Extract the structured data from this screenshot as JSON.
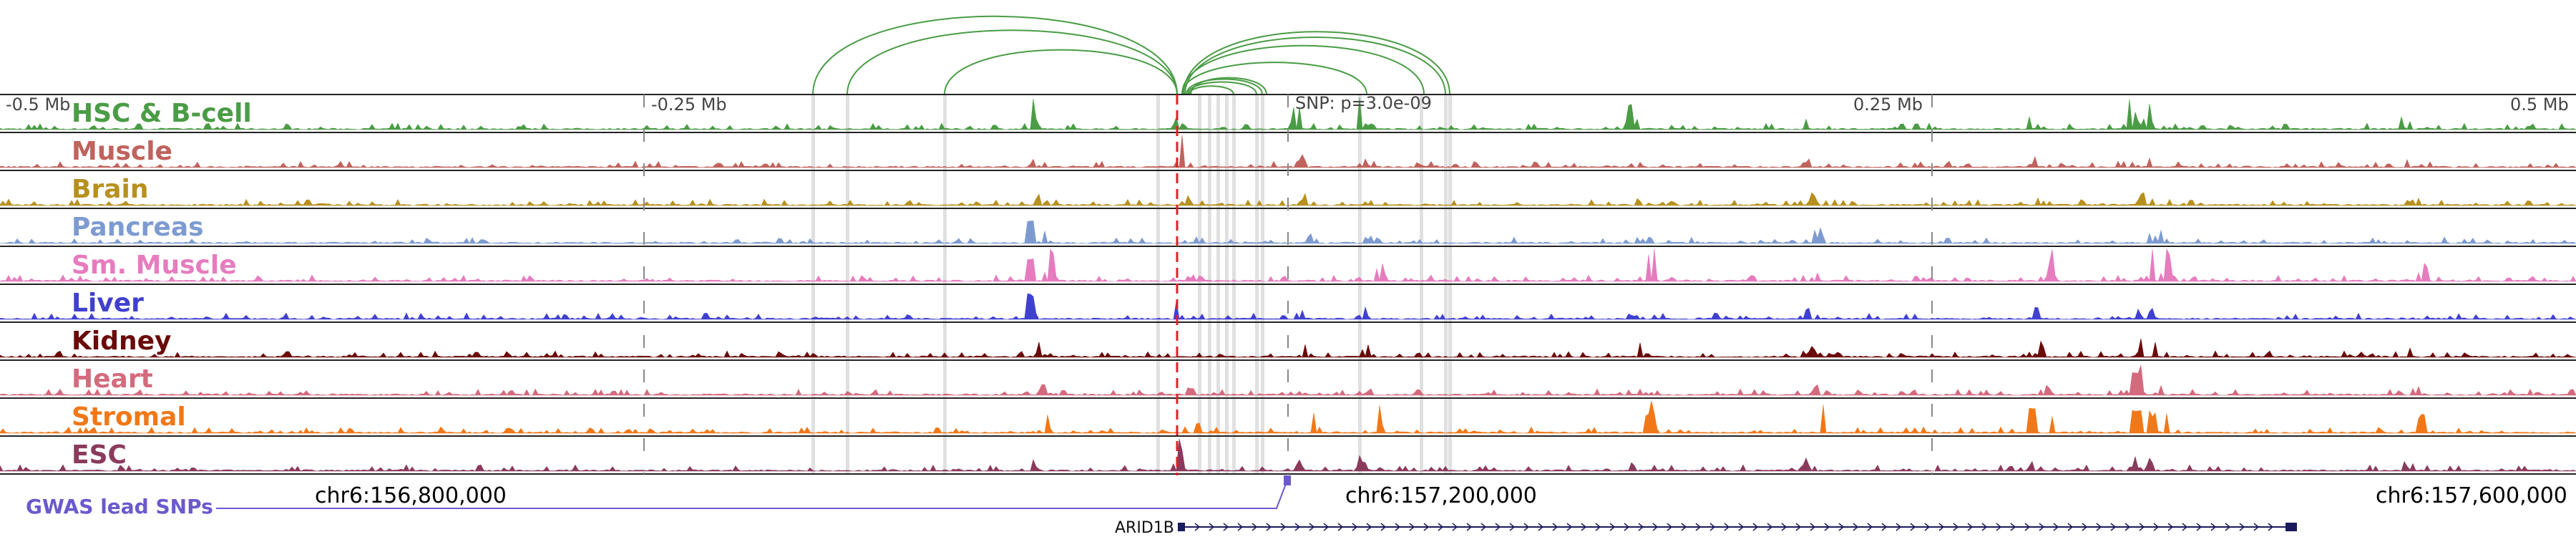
{
  "distance_labels": [
    "-0.5 Mb",
    "-0.25 Mb",
    "0.25 Mb",
    "0.5 Mb"
  ],
  "snp_label": "SNP: p=3.0e-09",
  "tracks": [
    {
      "label": "HSC & B-cell",
      "color": "#4a9c45"
    },
    {
      "label": "Muscle",
      "color": "#c0625d"
    },
    {
      "label": "Brain",
      "color": "#b8901f"
    },
    {
      "label": "Pancreas",
      "color": "#7d9bd1"
    },
    {
      "label": "Sm. Muscle",
      "color": "#e67cbe"
    },
    {
      "label": "Liver",
      "color": "#4040d0"
    },
    {
      "label": "Kidney",
      "color": "#6a0a0a"
    },
    {
      "label": "Heart",
      "color": "#d46a7e"
    },
    {
      "label": "Stromal",
      "color": "#f07818"
    },
    {
      "label": "ESC",
      "color": "#8a3a5c"
    }
  ],
  "coordinates": [
    "chr6:156,800,000",
    "chr6:157,200,000",
    "chr6:157,600,000"
  ],
  "gwas_label": "GWAS lead SNPs",
  "gwas_color": "#6a5acd",
  "gene_name": "ARID1B",
  "gene_color": "#1a1a5e",
  "snp_line_color": "#e0202a",
  "arc_color": "#4a9c45"
}
